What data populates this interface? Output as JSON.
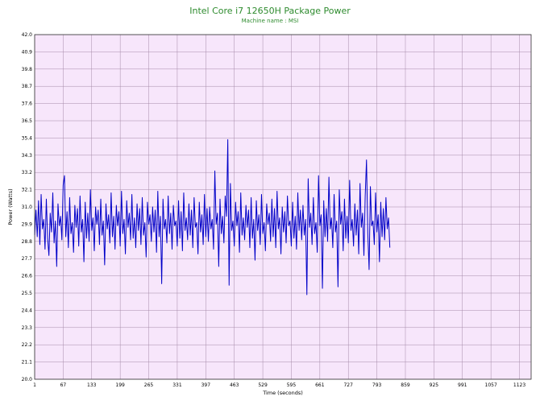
{
  "chart_data": {
    "type": "line",
    "title": "Intel Core i7 12650H Package Power",
    "subtitle": "Machine name : MSI",
    "xlabel": "Time (seconds)",
    "ylabel": "Power (Watts)",
    "xlim": [
      1,
      1150
    ],
    "ylim": [
      20.0,
      42.0
    ],
    "yticks": [
      "20.0",
      "21.1",
      "22.2",
      "23.3",
      "24.4",
      "25.5",
      "26.6",
      "27.7",
      "28.8",
      "29.9",
      "31.0",
      "32.1",
      "33.2",
      "34.3",
      "35.4",
      "36.5",
      "37.6",
      "38.7",
      "39.8",
      "40.9",
      "42.0"
    ],
    "xticks": [
      "1",
      "67",
      "133",
      "199",
      "265",
      "331",
      "397",
      "463",
      "529",
      "595",
      "661",
      "727",
      "793",
      "859",
      "925",
      "991",
      "1057",
      "1123"
    ],
    "grid": true,
    "background_color": "#f7e6fb",
    "grid_color": "#a58aa8",
    "line_color": "#0000c8",
    "title_color": "#2e8b2e",
    "series": [
      {
        "x_start": 1,
        "x_step": 3,
        "values": [
          29.2,
          30.8,
          29.1,
          31.4,
          28.6,
          31.8,
          29.6,
          30.2,
          28.3,
          31.5,
          29.0,
          27.9,
          30.6,
          29.4,
          31.9,
          28.7,
          30.1,
          27.2,
          31.2,
          29.8,
          30.4,
          28.9,
          32.4,
          33.0,
          29.1,
          30.7,
          28.4,
          31.6,
          29.3,
          30.0,
          28.1,
          31.1,
          29.7,
          30.9,
          28.5,
          31.7,
          29.4,
          30.2,
          27.5,
          31.3,
          29.0,
          30.6,
          28.8,
          32.1,
          29.5,
          30.3,
          28.2,
          31.0,
          29.9,
          30.8,
          28.6,
          31.5,
          29.2,
          30.1,
          27.3,
          31.2,
          29.6,
          30.5,
          28.7,
          31.9,
          29.1,
          30.4,
          28.3,
          31.1,
          29.8,
          30.7,
          28.5,
          32.0,
          29.3,
          30.2,
          28.0,
          31.4,
          29.7,
          30.6,
          28.9,
          31.8,
          29.0,
          30.3,
          28.4,
          31.2,
          29.5,
          30.9,
          28.6,
          31.6,
          29.2,
          30.0,
          27.8,
          31.3,
          29.9,
          30.5,
          28.8,
          31.0,
          29.4,
          30.8,
          28.1,
          32.0,
          29.1,
          30.4,
          26.1,
          31.5,
          29.6,
          30.2,
          28.7,
          31.7,
          29.3,
          30.6,
          28.3,
          31.1,
          29.8,
          30.1,
          28.5,
          31.4,
          29.0,
          30.7,
          28.2,
          31.9,
          29.5,
          30.3,
          28.9,
          31.2,
          29.2,
          30.8,
          28.4,
          31.6,
          29.7,
          30.0,
          28.0,
          31.3,
          29.4,
          30.5,
          28.6,
          31.8,
          29.1,
          30.9,
          28.8,
          31.0,
          29.6,
          30.2,
          28.3,
          33.3,
          29.9,
          30.6,
          27.2,
          31.5,
          29.3,
          30.4,
          28.7,
          31.7,
          30.4,
          35.3,
          26.0,
          32.5,
          29.5,
          30.1,
          28.5,
          31.3,
          29.8,
          30.7,
          28.1,
          31.9,
          29.2,
          30.3,
          28.9,
          31.1,
          29.7,
          30.8,
          28.4,
          31.6,
          29.0,
          30.2,
          27.6,
          31.4,
          29.5,
          30.5,
          28.6,
          31.8,
          29.3,
          30.0,
          28.2,
          31.2,
          29.9,
          30.6,
          28.8,
          31.5,
          29.1,
          30.9,
          28.4,
          32.0,
          29.6,
          30.3,
          28.0,
          31.0,
          29.4,
          30.7,
          28.7,
          31.7,
          29.8,
          30.1,
          28.5,
          31.3,
          29.0,
          30.4,
          28.3,
          31.9,
          29.5,
          30.8,
          28.9,
          31.1,
          29.2,
          30.2,
          25.4,
          32.8,
          29.7,
          30.6,
          28.6,
          31.6,
          29.3,
          30.0,
          28.1,
          33.0,
          29.8,
          30.5,
          25.8,
          31.4,
          29.1,
          30.9,
          28.8,
          32.9,
          29.6,
          30.3,
          28.4,
          31.8,
          29.4,
          30.1,
          25.9,
          32.1,
          29.9,
          30.7,
          28.2,
          31.5,
          29.0,
          30.4,
          28.7,
          32.7,
          29.5,
          30.2,
          28.5,
          31.2,
          29.2,
          30.8,
          28.0,
          32.5,
          29.7,
          30.6,
          27.9,
          31.7,
          34.0,
          29.3,
          27.0,
          32.3,
          29.8,
          30.1,
          28.6,
          31.9,
          29.4,
          30.5,
          27.5,
          31.3,
          29.1,
          30.9,
          28.9,
          31.6,
          29.6,
          30.3,
          28.4
        ]
      }
    ]
  }
}
